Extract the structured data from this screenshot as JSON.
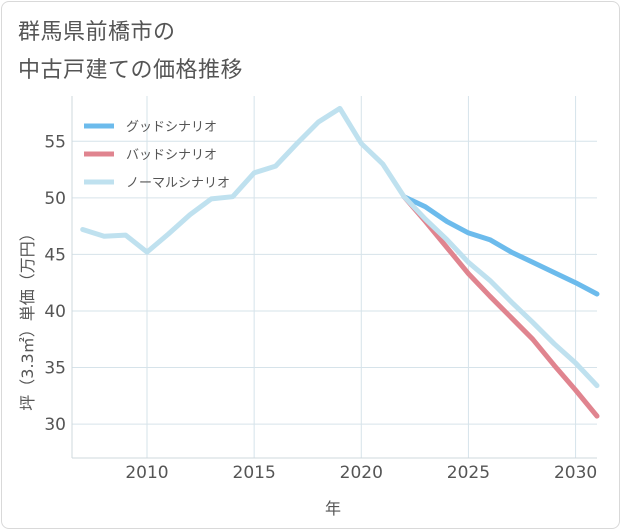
{
  "title_line1": "群馬県前橋市の",
  "title_line2": "中古戸建ての価格推移",
  "chart_data": {
    "type": "line",
    "xlabel": "年",
    "ylabel": "坪（3.3㎡）単価（万円）",
    "xlim": [
      2006.5,
      2031
    ],
    "ylim": [
      27,
      59
    ],
    "xticks": [
      2010,
      2015,
      2020,
      2025,
      2030
    ],
    "yticks": [
      30,
      35,
      40,
      45,
      50,
      55
    ],
    "grid": true,
    "legend_position": "top-left",
    "series": [
      {
        "name": "グッドシナリオ",
        "color": "#6cbbec",
        "x": [
          2022,
          2023,
          2024,
          2025,
          2026,
          2027,
          2028,
          2029,
          2030,
          2031
        ],
        "y": [
          50.1,
          49.2,
          47.9,
          46.9,
          46.3,
          45.2,
          44.3,
          43.4,
          42.5,
          41.5
        ]
      },
      {
        "name": "バッドシナリオ",
        "color": "#e0848f",
        "x": [
          2022,
          2023,
          2024,
          2025,
          2026,
          2027,
          2028,
          2029,
          2030,
          2031
        ],
        "y": [
          50.1,
          47.9,
          45.6,
          43.3,
          41.3,
          39.4,
          37.5,
          35.2,
          33.0,
          30.7
        ]
      },
      {
        "name": "ノーマルシナリオ",
        "color": "#bfe1ef",
        "x": [
          2007,
          2008,
          2009,
          2010,
          2011,
          2012,
          2013,
          2014,
          2015,
          2016,
          2017,
          2018,
          2019,
          2020,
          2021,
          2022,
          2023,
          2024,
          2025,
          2026,
          2027,
          2028,
          2029,
          2030,
          2031
        ],
        "y": [
          47.2,
          46.6,
          46.7,
          45.2,
          46.8,
          48.5,
          49.9,
          50.1,
          52.2,
          52.8,
          54.8,
          56.7,
          57.9,
          54.8,
          53.0,
          50.1,
          48.1,
          46.3,
          44.3,
          42.7,
          40.8,
          39.0,
          37.1,
          35.4,
          33.4
        ]
      }
    ]
  }
}
